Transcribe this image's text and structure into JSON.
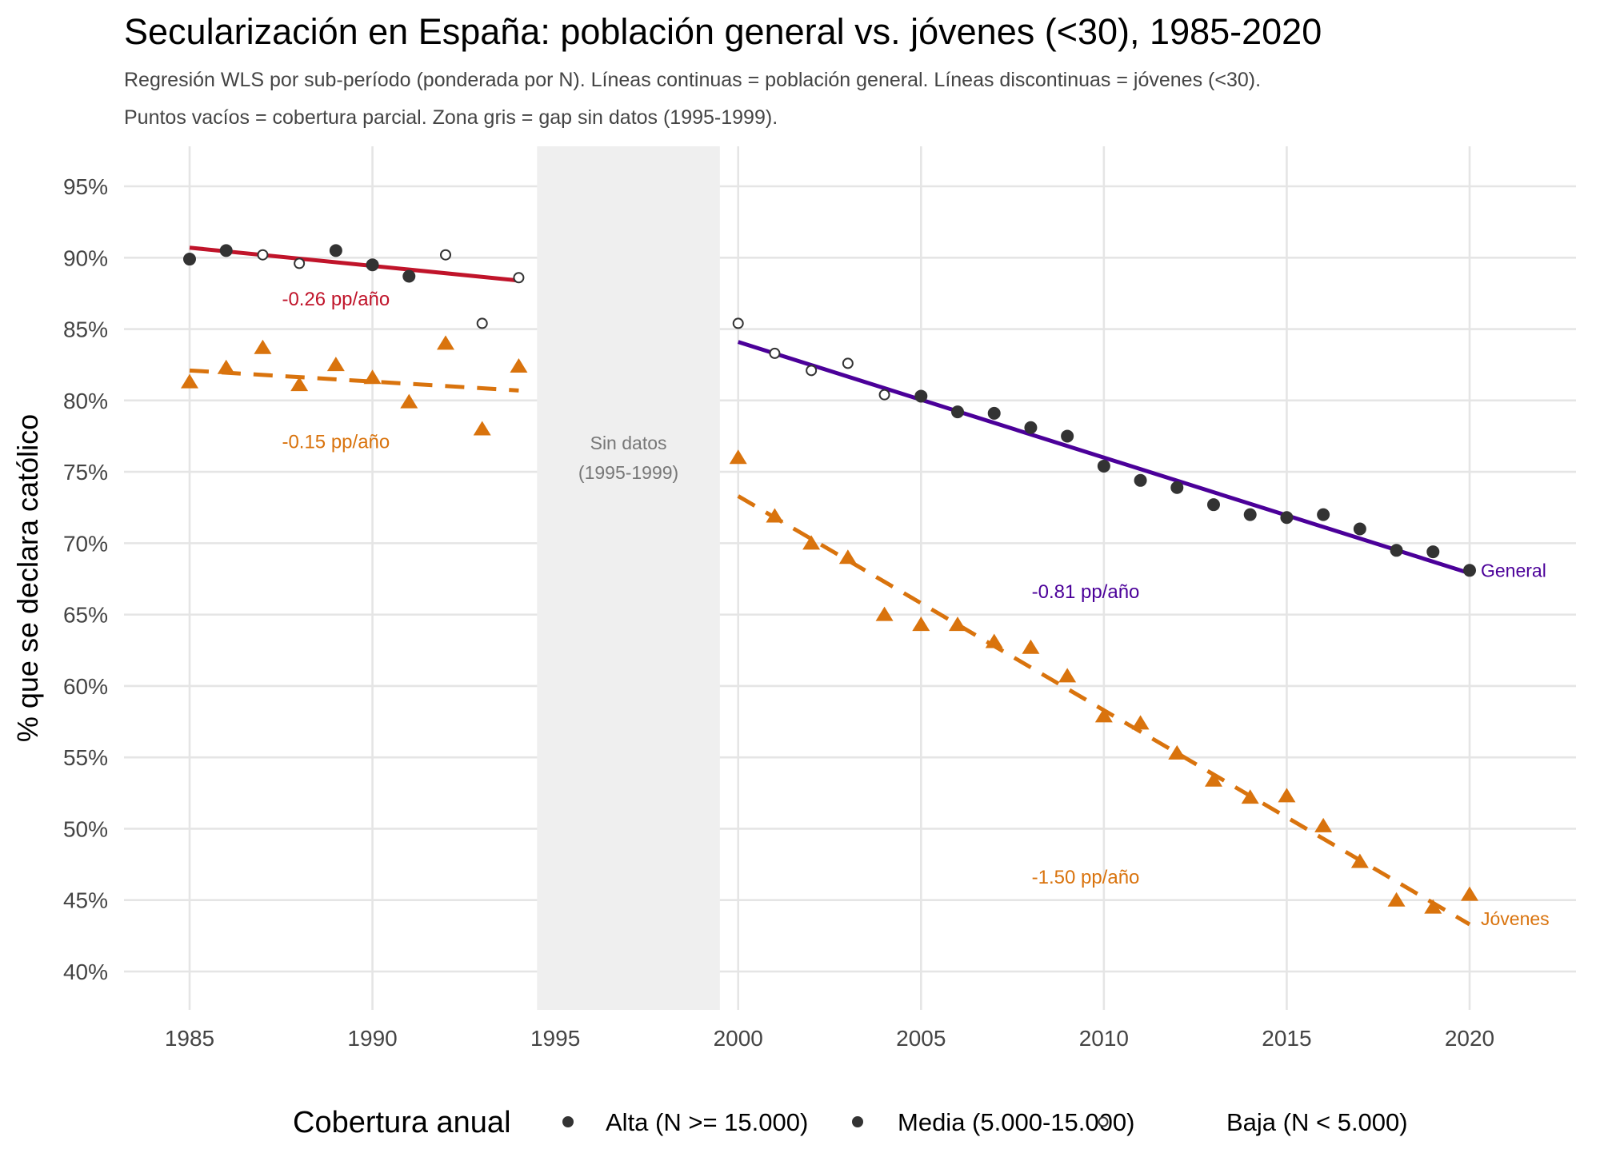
{
  "chart_data": {
    "type": "scatter",
    "title": "Secularización en España: población general vs. jóvenes (<30), 1985-2020",
    "subtitle_lines": [
      "Regresión WLS por sub-período (ponderada por N). Líneas continuas = población general. Líneas discontinuas = jóvenes (<30).",
      "Puntos vacíos = cobertura parcial. Zona gris = gap sin datos (1995-1999)."
    ],
    "xlabel": "",
    "ylabel": "% que se declara católico",
    "xlim": [
      1983.2,
      2023.2
    ],
    "ylim": [
      37.5,
      97.5
    ],
    "x_ticks": [
      1985,
      1990,
      1995,
      2000,
      2005,
      2010,
      2015,
      2020
    ],
    "y_ticks": [
      40,
      45,
      50,
      55,
      60,
      65,
      70,
      75,
      80,
      85,
      90,
      95
    ],
    "y_tick_labels": [
      "40%",
      "45%",
      "50%",
      "55%",
      "60%",
      "65%",
      "70%",
      "75%",
      "80%",
      "85%",
      "90%",
      "95%"
    ],
    "grid": true,
    "gap": {
      "from": 1994.5,
      "to": 1999.5,
      "label_lines": [
        "Sin datos",
        "(1995-1999)"
      ],
      "color": "#efefef"
    },
    "colors": {
      "general_early": "#c0142a",
      "general_late": "#4b0099",
      "jovenes": "#d9730d",
      "points": "#333333"
    },
    "series": [
      {
        "name": "General",
        "x": [
          1985,
          1986,
          1987,
          1988,
          1989,
          1990,
          1991,
          1992,
          1993,
          1994,
          2000,
          2001,
          2002,
          2003,
          2004,
          2005,
          2006,
          2007,
          2008,
          2009,
          2010,
          2011,
          2012,
          2013,
          2014,
          2015,
          2016,
          2017,
          2018,
          2019,
          2020
        ],
        "y": [
          89.9,
          90.5,
          90.2,
          89.6,
          90.5,
          89.5,
          88.7,
          90.2,
          85.4,
          88.6,
          85.4,
          83.3,
          82.1,
          82.6,
          80.4,
          80.3,
          79.2,
          79.1,
          78.1,
          77.5,
          75.4,
          74.4,
          73.9,
          72.7,
          72.0,
          71.8,
          72.0,
          71.0,
          69.5,
          69.4,
          68.1
        ],
        "coverage": [
          "media",
          "media",
          "baja",
          "baja",
          "media",
          "media",
          "media",
          "baja",
          "baja",
          "baja",
          "baja",
          "baja",
          "baja",
          "baja",
          "baja",
          "alta",
          "alta",
          "alta",
          "alta",
          "alta",
          "alta",
          "alta",
          "alta",
          "alta",
          "alta",
          "alta",
          "alta",
          "alta",
          "alta",
          "alta",
          "alta"
        ]
      },
      {
        "name": "Jóvenes",
        "x": [
          1985,
          1986,
          1987,
          1988,
          1989,
          1990,
          1991,
          1992,
          1993,
          1994,
          2000,
          2001,
          2002,
          2003,
          2004,
          2005,
          2006,
          2007,
          2008,
          2009,
          2010,
          2011,
          2012,
          2013,
          2014,
          2015,
          2016,
          2017,
          2018,
          2019,
          2020
        ],
        "y": [
          81.3,
          82.3,
          83.7,
          81.1,
          82.5,
          81.6,
          79.9,
          84.0,
          78.0,
          82.4,
          76.0,
          71.9,
          70.0,
          69.0,
          65.0,
          64.3,
          64.3,
          63.1,
          62.7,
          60.7,
          57.9,
          57.4,
          55.3,
          53.4,
          52.2,
          52.3,
          50.2,
          47.7,
          45.0,
          44.5,
          45.4
        ]
      }
    ],
    "trend_lines": [
      {
        "group": "general",
        "period": [
          1985,
          1994
        ],
        "y": [
          90.7,
          88.4
        ],
        "dash": false,
        "color": "#c0142a",
        "label": "-0.26 pp/año",
        "label_at": [
          1989.0,
          87.1
        ]
      },
      {
        "group": "jovenes",
        "period": [
          1985,
          1994
        ],
        "y": [
          82.1,
          80.7
        ],
        "dash": true,
        "color": "#d9730d",
        "label": "-0.15 pp/año",
        "label_at": [
          1989.0,
          77.1
        ]
      },
      {
        "group": "general",
        "period": [
          2000,
          2020
        ],
        "y": [
          84.1,
          67.9
        ],
        "dash": false,
        "color": "#4b0099",
        "label": "-0.81 pp/año",
        "label_at": [
          2009.5,
          66.6
        ]
      },
      {
        "group": "jovenes",
        "period": [
          2000,
          2020
        ],
        "y": [
          73.3,
          43.3
        ],
        "dash": true,
        "color": "#d9730d",
        "label": "-1.50 pp/año",
        "label_at": [
          2009.5,
          46.6
        ]
      }
    ],
    "end_labels": [
      {
        "text": "General",
        "x": 2020,
        "y": 68.1,
        "color": "#4b0099"
      },
      {
        "text": "Jóvenes",
        "x": 2020,
        "y": 43.7,
        "color": "#d9730d"
      }
    ],
    "legend": {
      "title": "Cobertura anual",
      "placement": "bottom",
      "items": [
        {
          "label": "Alta (N >= 15.000)",
          "shape": "filled-circle"
        },
        {
          "label": "Media (5.000-15.000)",
          "shape": "filled-circle"
        },
        {
          "label": "Baja (N < 5.000)",
          "shape": "open-circle"
        }
      ]
    }
  }
}
